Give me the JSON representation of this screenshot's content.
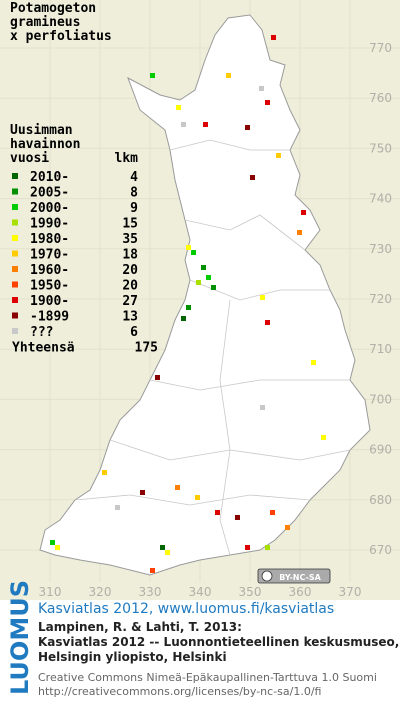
{
  "header": {
    "title": [
      "Potamogeton",
      "gramineus",
      "x perfoliatus"
    ]
  },
  "legend": {
    "header": [
      "Uusimman",
      "havainnon",
      "vuosi",
      "lkm"
    ],
    "rows": [
      {
        "label": "2010-",
        "count": 4,
        "color": "#006400"
      },
      {
        "label": "2005-",
        "count": 8,
        "color": "#009000"
      },
      {
        "label": "2000-",
        "count": 9,
        "color": "#00cc00"
      },
      {
        "label": "1990-",
        "count": 15,
        "color": "#a8e000"
      },
      {
        "label": "1980-",
        "count": 35,
        "color": "#ffff00"
      },
      {
        "label": "1970-",
        "count": 18,
        "color": "#ffcc00"
      },
      {
        "label": "1960-",
        "count": 20,
        "color": "#ff8000"
      },
      {
        "label": "1950-",
        "count": 20,
        "color": "#ff4000"
      },
      {
        "label": "1900-",
        "count": 27,
        "color": "#dd0000"
      },
      {
        "label": "-1899",
        "count": 13,
        "color": "#880000"
      },
      {
        "label": "???",
        "count": 6,
        "color": "#c8c8c8"
      }
    ],
    "total": {
      "label": "Yhteensä",
      "value": 175
    }
  },
  "axes": {
    "x_labels": [
      310,
      320,
      330,
      340,
      350,
      360,
      370
    ],
    "y_labels": [
      770,
      760,
      750,
      740,
      730,
      720,
      710,
      700,
      690,
      680,
      670
    ]
  },
  "badge": "BY-NC-SA",
  "footer": {
    "logo": "LUOMUS",
    "site": "Kasviatlas 2012, www.luomus.fi/kasviatlas",
    "citation": [
      "Lampinen, R. & Lahti, T. 2013:",
      "Kasviatlas 2012 -- Luonnontieteellinen keskusmuseo,",
      "Helsingin yliopisto, Helsinki"
    ],
    "license": [
      "Creative Commons Nimeä-Epäkaupallinen-Tarttuva 1.0 Suomi",
      "http://creativecommons.org/licenses/by-nc-sa/1.0/fi"
    ]
  }
}
